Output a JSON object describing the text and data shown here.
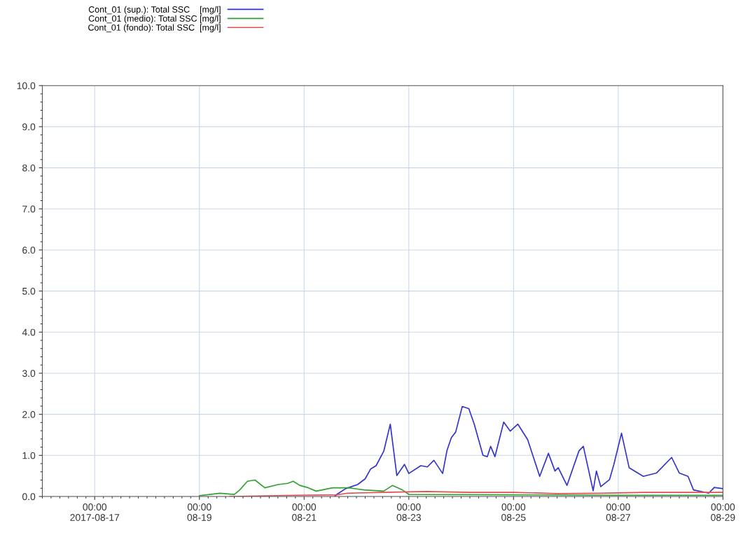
{
  "chart_data": {
    "type": "line",
    "xlim": [
      "2017-08-16",
      "2017-08-29"
    ],
    "xticks": [
      {
        "value": "2017-08-17",
        "label": "00:00\n2017-08-17"
      },
      {
        "value": "2017-08-19",
        "label": "00:00\n08-19"
      },
      {
        "value": "2017-08-21",
        "label": "00:00\n08-21"
      },
      {
        "value": "2017-08-23",
        "label": "00:00\n08-23"
      },
      {
        "value": "2017-08-25",
        "label": "00:00\n08-25"
      },
      {
        "value": "2017-08-27",
        "label": "00:00\n08-27"
      },
      {
        "value": "2017-08-29",
        "label": "00:00\n08-29"
      }
    ],
    "ylim": [
      0,
      10
    ],
    "yticks": [
      {
        "value": 0,
        "label": "0.0"
      },
      {
        "value": 1,
        "label": "1.0"
      },
      {
        "value": 2,
        "label": "2.0"
      },
      {
        "value": 3,
        "label": "3.0"
      },
      {
        "value": 4,
        "label": "4.0"
      },
      {
        "value": 5,
        "label": "5.0"
      },
      {
        "value": 6,
        "label": "6.0"
      },
      {
        "value": 7,
        "label": "7.0"
      },
      {
        "value": 8,
        "label": "8.0"
      },
      {
        "value": 9,
        "label": "9.0"
      },
      {
        "value": 10,
        "label": "10.0"
      }
    ],
    "grid": true,
    "legend": "top left",
    "line_style": "solid",
    "series": [
      {
        "name": "Cont_01 (sup.): Total SSC    [mg/l]",
        "color": "#3333cc",
        "x": [
          "2017-08-21T14:00",
          "2017-08-21T15:00",
          "2017-08-21T19:00",
          "2017-08-22T00:30",
          "2017-08-22T04:00",
          "2017-08-22T06:30",
          "2017-08-22T09:00",
          "2017-08-22T12:30",
          "2017-08-22T15:30",
          "2017-08-22T18:30",
          "2017-08-22T22:00",
          "2017-08-23T00:00",
          "2017-08-23T05:30",
          "2017-08-23T08:30",
          "2017-08-23T11:30",
          "2017-08-23T15:30",
          "2017-08-23T17:30",
          "2017-08-23T19:30",
          "2017-08-23T21:30",
          "2017-08-24T00:30",
          "2017-08-24T03:30",
          "2017-08-24T06:00",
          "2017-08-24T10:00",
          "2017-08-24T12:00",
          "2017-08-24T13:30",
          "2017-08-24T15:30",
          "2017-08-24T19:30",
          "2017-08-24T22:30",
          "2017-08-25T02:00",
          "2017-08-25T06:30",
          "2017-08-25T12:00",
          "2017-08-25T16:00",
          "2017-08-25T19:00",
          "2017-08-25T20:30",
          "2017-08-26T00:30",
          "2017-08-26T06:00",
          "2017-08-26T08:00",
          "2017-08-26T12:30",
          "2017-08-26T14:00",
          "2017-08-26T16:00",
          "2017-08-26T20:00",
          "2017-08-26T22:00",
          "2017-08-27T01:30",
          "2017-08-27T05:00",
          "2017-08-27T11:30",
          "2017-08-27T17:30",
          "2017-08-28T00:30",
          "2017-08-28T04:00",
          "2017-08-28T08:00",
          "2017-08-28T10:30",
          "2017-08-28T17:30",
          "2017-08-28T20:00",
          "2017-08-29T00:00"
        ],
        "values": [
          0,
          0.05,
          0.19,
          0.29,
          0.43,
          0.67,
          0.75,
          1.1,
          1.76,
          0.51,
          0.78,
          0.56,
          0.75,
          0.72,
          0.88,
          0.56,
          1.12,
          1.43,
          1.57,
          2.19,
          2.14,
          1.76,
          1.0,
          0.97,
          1.22,
          0.97,
          1.81,
          1.59,
          1.76,
          1.38,
          0.49,
          1.05,
          0.62,
          0.7,
          0.27,
          1.11,
          1.22,
          0.14,
          0.62,
          0.24,
          0.41,
          0.78,
          1.54,
          0.7,
          0.49,
          0.57,
          0.95,
          0.57,
          0.49,
          0.16,
          0.08,
          0.22,
          0.19
        ]
      },
      {
        "name": "Cont_01 (medio): Total SSC [mg/l]",
        "color": "#33a033",
        "x": [
          "2017-08-19T00:00",
          "2017-08-19T09:30",
          "2017-08-19T16:00",
          "2017-08-19T18:30",
          "2017-08-19T22:00",
          "2017-08-20T01:30",
          "2017-08-20T06:00",
          "2017-08-20T12:00",
          "2017-08-20T16:30",
          "2017-08-20T19:00",
          "2017-08-20T22:00",
          "2017-08-21T02:00",
          "2017-08-21T05:30",
          "2017-08-21T13:00",
          "2017-08-21T20:30",
          "2017-08-22T03:30",
          "2017-08-22T12:30",
          "2017-08-22T16:30",
          "2017-08-22T21:00",
          "2017-08-23T00:00",
          "2017-08-25T00:00",
          "2017-08-27T00:00",
          "2017-08-29T00:00"
        ],
        "values": [
          0.02,
          0.08,
          0.05,
          0.16,
          0.37,
          0.4,
          0.21,
          0.29,
          0.32,
          0.37,
          0.27,
          0.21,
          0.13,
          0.21,
          0.21,
          0.16,
          0.13,
          0.27,
          0.16,
          0.05,
          0.04,
          0.03,
          0.03
        ]
      },
      {
        "name": "Cont_01 (fondo): Total SSC  [mg/l]",
        "color": "#e05050",
        "x": [
          "2017-08-19T14:00",
          "2017-08-20T20:00",
          "2017-08-21T15:00",
          "2017-08-21T20:00",
          "2017-08-22T12:00",
          "2017-08-23T08:00",
          "2017-08-24T04:00",
          "2017-08-25T00:00",
          "2017-08-25T20:00",
          "2017-08-26T16:00",
          "2017-08-27T12:00",
          "2017-08-29T00:00"
        ],
        "values": [
          0,
          0.03,
          0.04,
          0.08,
          0.1,
          0.12,
          0.1,
          0.1,
          0.07,
          0.08,
          0.1,
          0.1
        ]
      }
    ]
  }
}
